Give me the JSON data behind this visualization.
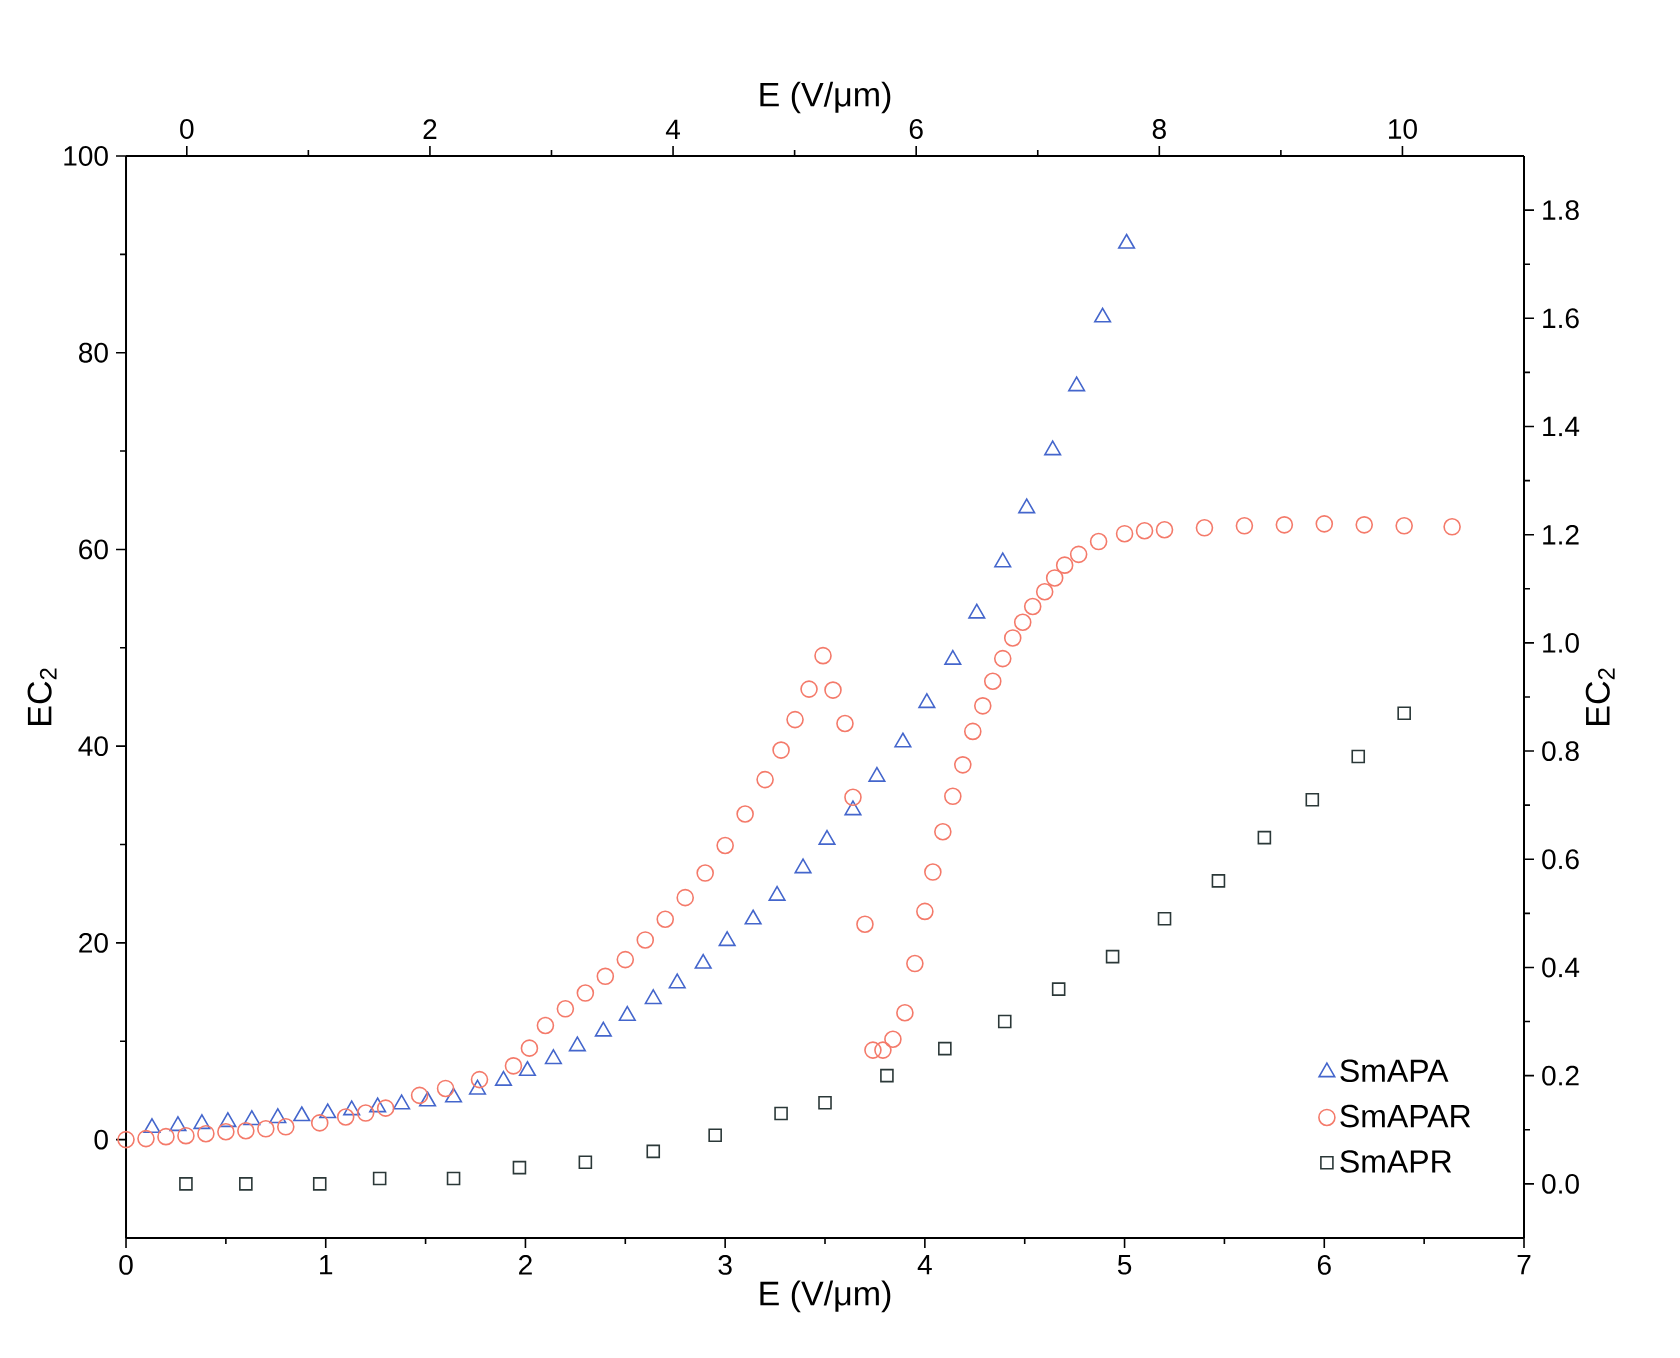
{
  "chart_data": {
    "type": "scatter",
    "xlabel": "E (V/μm)",
    "x2label": "E (V/μm)",
    "ylabel": "EC$_{2}$",
    "y2label": "EC$_{2}$",
    "xlim": [
      0,
      7
    ],
    "xticks": [
      0,
      1,
      2,
      3,
      4,
      5,
      6,
      7
    ],
    "ylim": [
      -10,
      100
    ],
    "yticks": [
      0,
      20,
      40,
      60,
      80,
      100
    ],
    "x2lim": [
      -0.5,
      11
    ],
    "x2ticks": [
      0,
      2,
      4,
      6,
      8,
      10
    ],
    "y2lim": [
      -0.1,
      1.9
    ],
    "y2ticks": [
      {
        "value": 0,
        "label": "0.0"
      },
      {
        "value": 0.2,
        "label": "0.2"
      },
      {
        "value": 0.4,
        "label": "0.4"
      },
      {
        "value": 0.6,
        "label": "0.6"
      },
      {
        "value": 0.8,
        "label": "0.8"
      },
      {
        "value": 1.0,
        "label": "1.0"
      },
      {
        "value": 1.2,
        "label": "1.2"
      },
      {
        "value": 1.4,
        "label": "1.4"
      },
      {
        "value": 1.6,
        "label": "1.6"
      },
      {
        "value": 1.8,
        "label": "1.8"
      }
    ],
    "legend": "bottom right",
    "series": [
      {
        "name": "SmAPA",
        "color": "#4466cc",
        "marker": "triangle",
        "x": [
          0.13,
          0.26,
          0.38,
          0.51,
          0.63,
          0.76,
          0.88,
          1.01,
          1.13,
          1.26,
          1.38,
          1.51,
          1.64,
          1.76,
          1.89,
          2.01,
          2.14,
          2.26,
          2.39,
          2.51,
          2.64,
          2.76,
          2.89,
          3.01,
          3.14,
          3.26,
          3.39,
          3.51,
          3.64,
          3.76,
          3.89,
          4.01,
          4.14,
          4.26,
          4.39,
          4.51,
          4.64,
          4.76,
          4.89,
          5.01
        ],
        "values": [
          1.2,
          1.4,
          1.6,
          1.8,
          2.0,
          2.2,
          2.4,
          2.7,
          3.0,
          3.3,
          3.6,
          3.9,
          4.3,
          5.1,
          6.0,
          7.0,
          8.2,
          9.5,
          11.0,
          12.6,
          14.3,
          15.9,
          17.9,
          20.2,
          22.4,
          24.8,
          27.6,
          30.5,
          33.5,
          36.9,
          40.4,
          44.4,
          48.8,
          53.5,
          58.7,
          64.2,
          70.1,
          76.6,
          83.6,
          91.1
        ]
      },
      {
        "name": "SmAPAR",
        "color": "#f47a6a",
        "marker": "circle",
        "x": [
          0.0,
          0.1,
          0.2,
          0.3,
          0.4,
          0.5,
          0.6,
          0.7,
          0.8,
          0.97,
          1.1,
          1.2,
          1.3,
          1.47,
          1.6,
          1.77,
          1.94,
          2.02,
          2.1,
          2.2,
          2.3,
          2.4,
          2.5,
          2.6,
          2.7,
          2.8,
          2.9,
          3.0,
          3.1,
          3.2,
          3.28,
          3.35,
          3.42,
          3.49,
          3.54,
          3.6,
          3.64,
          3.7,
          3.74,
          3.79,
          3.84,
          3.9,
          3.95,
          4.0,
          4.04,
          4.09,
          4.14,
          4.19,
          4.24,
          4.29,
          4.34,
          4.39,
          4.44,
          4.49,
          4.54,
          4.6,
          4.65,
          4.7,
          4.77,
          4.87,
          5.0,
          5.1,
          5.2,
          5.4,
          5.6,
          5.8,
          6.0,
          6.2,
          6.4,
          6.64
        ],
        "values": [
          0.0,
          0.1,
          0.3,
          0.4,
          0.6,
          0.8,
          0.9,
          1.1,
          1.3,
          1.7,
          2.3,
          2.7,
          3.2,
          4.5,
          5.2,
          6.1,
          7.5,
          9.3,
          11.6,
          13.3,
          14.9,
          16.6,
          18.3,
          20.3,
          22.4,
          24.6,
          27.1,
          29.9,
          33.1,
          36.6,
          39.6,
          42.7,
          45.8,
          49.2,
          45.7,
          42.3,
          34.8,
          21.9,
          9.1,
          9.1,
          10.2,
          12.9,
          17.9,
          23.2,
          27.2,
          31.3,
          34.9,
          38.1,
          41.5,
          44.1,
          46.6,
          48.9,
          51.0,
          52.6,
          54.2,
          55.7,
          57.1,
          58.4,
          59.5,
          60.8,
          61.6,
          61.9,
          62.0,
          62.2,
          62.4,
          62.5,
          62.6,
          62.5,
          62.4,
          62.3
        ]
      },
      {
        "name": "SmAPR",
        "color": "#2b3838",
        "marker": "square",
        "axis": "y2",
        "x": [
          0.3,
          0.6,
          0.97,
          1.27,
          1.64,
          1.97,
          2.3,
          2.64,
          2.95,
          3.28,
          3.5,
          3.81,
          4.1,
          4.4,
          4.67,
          4.94,
          5.2,
          5.47,
          5.7,
          5.94,
          6.17,
          6.4
        ],
        "values": [
          0.0,
          0.0,
          0.0,
          0.01,
          0.01,
          0.03,
          0.04,
          0.06,
          0.09,
          0.13,
          0.15,
          0.2,
          0.25,
          0.3,
          0.36,
          0.42,
          0.49,
          0.56,
          0.64,
          0.71,
          0.79,
          0.87
        ]
      }
    ]
  }
}
